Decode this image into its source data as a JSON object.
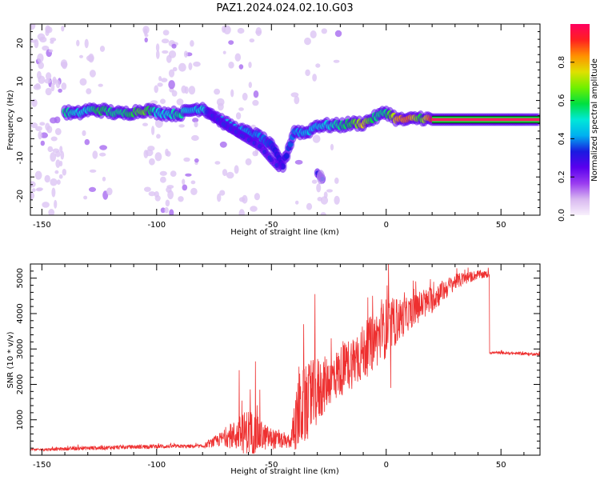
{
  "title": "PAZ1.2024.024.02.10.G03",
  "chart_data": [
    {
      "type": "heatmap",
      "xlabel": "Height of straight line (km)",
      "ylabel": "Frequency (Hz)",
      "xlim": [
        -155,
        67
      ],
      "ylim": [
        -25,
        25
      ],
      "xticks": [
        -150,
        -100,
        -50,
        0,
        50
      ],
      "yticks": [
        -20,
        -10,
        0,
        10,
        20
      ],
      "colorbar": {
        "label": "Normalized spectral amplitude",
        "range": [
          0.0,
          1.0
        ],
        "ticks": [
          0.0,
          0.2,
          0.4,
          0.6,
          0.8
        ],
        "colormap": [
          "#f8f0fc",
          "#d8b8f0",
          "#9a3cf0",
          "#5a00ee",
          "#1a1ae0",
          "#00b0f0",
          "#00e8d8",
          "#00e040",
          "#70f000",
          "#e0e000",
          "#ff9000",
          "#ff2020",
          "#ff0060"
        ]
      },
      "ridge": [
        {
          "x": -140,
          "y": 2.0,
          "a": 0.55
        },
        {
          "x": -135,
          "y": 1.5,
          "a": 0.5
        },
        {
          "x": -130,
          "y": 2.5,
          "a": 0.5
        },
        {
          "x": -125,
          "y": 2.5,
          "a": 0.6
        },
        {
          "x": -120,
          "y": 2.0,
          "a": 0.55
        },
        {
          "x": -115,
          "y": 1.5,
          "a": 0.55
        },
        {
          "x": -110,
          "y": 2.0,
          "a": 0.6
        },
        {
          "x": -105,
          "y": 2.5,
          "a": 0.65
        },
        {
          "x": -100,
          "y": 2.0,
          "a": 0.5
        },
        {
          "x": -95,
          "y": 1.5,
          "a": 0.5
        },
        {
          "x": -90,
          "y": 1.5,
          "a": 0.55
        },
        {
          "x": -85,
          "y": 2.5,
          "a": 0.45
        },
        {
          "x": -80,
          "y": 3.0,
          "a": 0.5
        },
        {
          "x": -75,
          "y": 1.0,
          "a": 0.45
        },
        {
          "x": -70,
          "y": -1.0,
          "a": 0.45
        },
        {
          "x": -65,
          "y": -2.5,
          "a": 0.45
        },
        {
          "x": -60,
          "y": -3.5,
          "a": 0.4
        },
        {
          "x": -55,
          "y": -4.5,
          "a": 0.4
        },
        {
          "x": -50,
          "y": -7.0,
          "a": 0.35
        },
        {
          "x": -45,
          "y": -12.0,
          "a": 0.3
        },
        {
          "x": -40,
          "y": -3.0,
          "a": 0.4
        },
        {
          "x": -35,
          "y": -3.5,
          "a": 0.45
        },
        {
          "x": -30,
          "y": -1.5,
          "a": 0.45
        },
        {
          "x": -25,
          "y": -1.5,
          "a": 0.5
        },
        {
          "x": -20,
          "y": -1.5,
          "a": 0.55
        },
        {
          "x": -15,
          "y": -1.0,
          "a": 0.6
        },
        {
          "x": -10,
          "y": -1.0,
          "a": 0.75
        },
        {
          "x": -5,
          "y": 0.5,
          "a": 0.55
        },
        {
          "x": 0,
          "y": 2.0,
          "a": 0.55
        },
        {
          "x": 5,
          "y": 0.0,
          "a": 0.8
        },
        {
          "x": 10,
          "y": 0.0,
          "a": 0.85
        },
        {
          "x": 15,
          "y": 0.5,
          "a": 0.6
        },
        {
          "x": 20,
          "y": 0.0,
          "a": 0.9
        },
        {
          "x": 30,
          "y": 0.0,
          "a": 0.92
        },
        {
          "x": 40,
          "y": 0.0,
          "a": 0.92
        },
        {
          "x": 50,
          "y": 0.0,
          "a": 0.92
        },
        {
          "x": 60,
          "y": 0.0,
          "a": 0.92
        },
        {
          "x": 67,
          "y": 0.0,
          "a": 0.92
        }
      ],
      "branch": [
        {
          "x": -78,
          "y": 2.0
        },
        {
          "x": -70,
          "y": -1.5
        },
        {
          "x": -62,
          "y": -4.5
        },
        {
          "x": -55,
          "y": -7.0
        },
        {
          "x": -50,
          "y": -10.5
        },
        {
          "x": -46,
          "y": -13.0
        },
        {
          "x": -30,
          "y": -14.0
        },
        {
          "x": -27,
          "y": -16.0
        }
      ]
    },
    {
      "type": "line",
      "xlabel": "Height of straight line (km)",
      "ylabel": "SNR (10 * v/v)",
      "xlim": [
        -155,
        67
      ],
      "ylim": [
        0,
        5400
      ],
      "xticks": [
        -150,
        -100,
        -50,
        0,
        50
      ],
      "yticks": [
        1000,
        2000,
        3000,
        4000,
        5000
      ],
      "color": "#ee3030",
      "envelope": [
        {
          "x": -155,
          "base": 150,
          "noise": 60
        },
        {
          "x": -130,
          "base": 200,
          "noise": 120
        },
        {
          "x": -100,
          "base": 250,
          "noise": 120
        },
        {
          "x": -80,
          "base": 250,
          "noise": 100
        },
        {
          "x": -70,
          "base": 500,
          "noise": 500
        },
        {
          "x": -60,
          "base": 650,
          "noise": 1400
        },
        {
          "x": -52,
          "base": 500,
          "noise": 700
        },
        {
          "x": -42,
          "base": 350,
          "noise": 300
        },
        {
          "x": -38,
          "base": 1200,
          "noise": 2300
        },
        {
          "x": -30,
          "base": 1800,
          "noise": 2000
        },
        {
          "x": -25,
          "base": 2100,
          "noise": 1400
        },
        {
          "x": -10,
          "base": 2900,
          "noise": 1600
        },
        {
          "x": 0,
          "base": 3600,
          "noise": 1700
        },
        {
          "x": 10,
          "base": 4000,
          "noise": 900
        },
        {
          "x": 20,
          "base": 4400,
          "noise": 800
        },
        {
          "x": 30,
          "base": 4900,
          "noise": 450
        },
        {
          "x": 40,
          "base": 5100,
          "noise": 250
        },
        {
          "x": 44,
          "base": 5100,
          "noise": 200
        },
        {
          "x": 45,
          "base": 2900,
          "noise": 80
        },
        {
          "x": 67,
          "base": 2850,
          "noise": 80
        }
      ],
      "spikes": [
        {
          "x": -64,
          "y": 2400
        },
        {
          "x": -57,
          "y": 2650
        },
        {
          "x": -55,
          "y": 1850
        },
        {
          "x": -38,
          "y": 2500
        },
        {
          "x": -36,
          "y": 3700
        },
        {
          "x": -31,
          "y": 4550
        },
        {
          "x": -24,
          "y": 3300
        },
        {
          "x": -6,
          "y": 4500
        },
        {
          "x": -2,
          "y": 4400
        },
        {
          "x": 1,
          "y": 5400
        },
        {
          "x": 2,
          "y": 1900
        },
        {
          "x": 8,
          "y": 4600
        },
        {
          "x": 12,
          "y": 4700
        }
      ]
    }
  ]
}
